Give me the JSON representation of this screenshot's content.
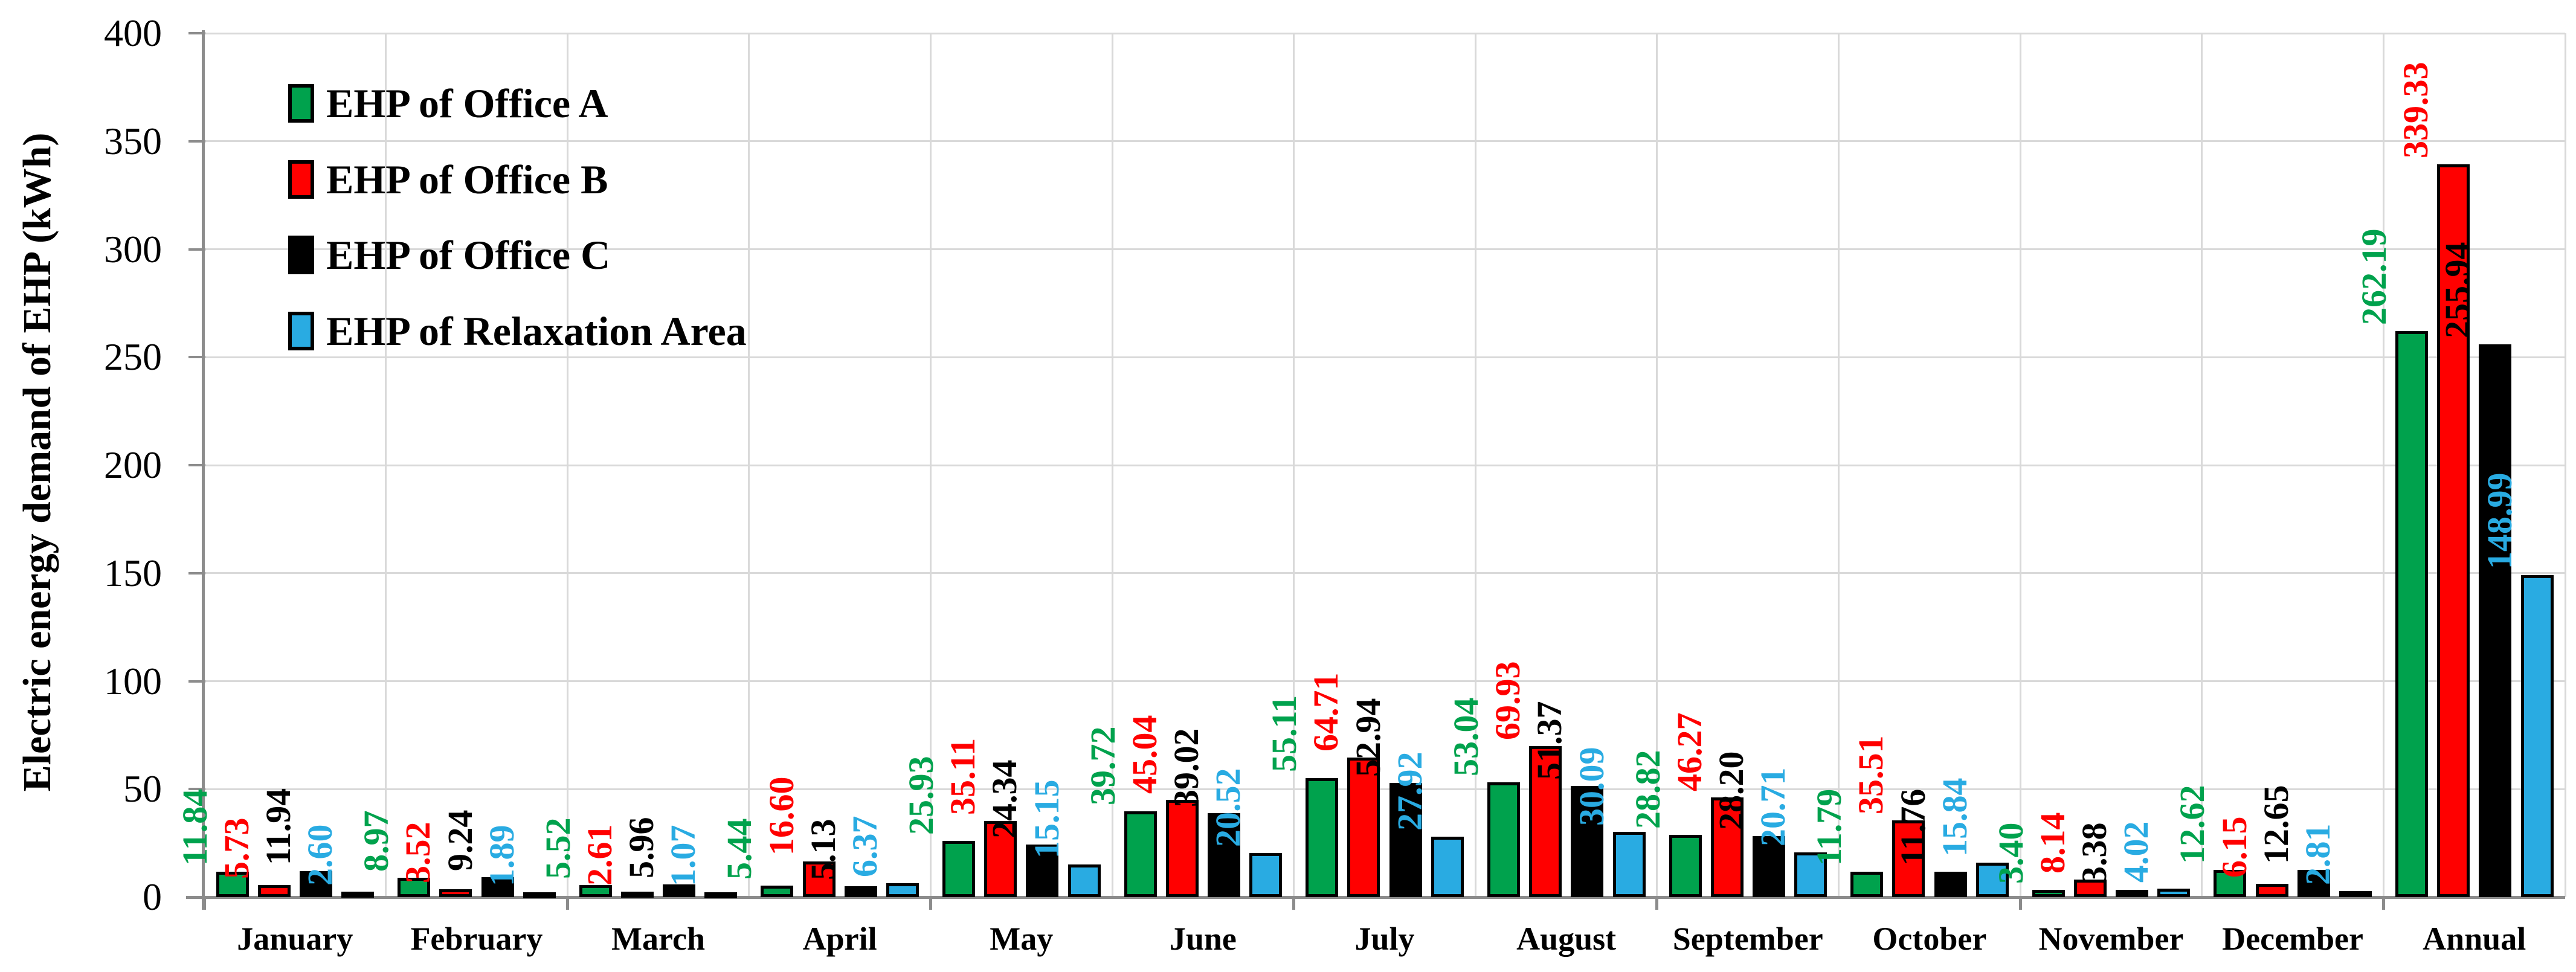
{
  "chart_data": {
    "type": "bar",
    "title": "",
    "xlabel": "",
    "ylabel": "Electric energy demand of EHP (kWh)",
    "ylim": [
      0,
      400
    ],
    "ytick_step": 50,
    "yticks": [
      0,
      50,
      100,
      150,
      200,
      250,
      300,
      350,
      400
    ],
    "grid": {
      "horizontal": true,
      "vertical_category_separators": true
    },
    "legend_position": "upper-left-inside",
    "value_labels": {
      "rotation": 90,
      "decimals": 2
    },
    "categories": [
      "January",
      "February",
      "March",
      "April",
      "May",
      "June",
      "July",
      "August",
      "September",
      "October",
      "November",
      "December",
      "Annual"
    ],
    "series": [
      {
        "name": "EHP of Office A",
        "color": "#00A24D",
        "values": [
          11.84,
          8.97,
          5.52,
          5.44,
          25.93,
          39.72,
          55.11,
          53.04,
          28.82,
          11.79,
          3.4,
          12.62,
          262.19
        ]
      },
      {
        "name": "EHP of Office B",
        "color": "#FF0000",
        "values": [
          5.73,
          3.52,
          2.61,
          16.6,
          35.11,
          45.04,
          64.71,
          69.93,
          46.27,
          35.51,
          8.14,
          6.15,
          339.33
        ]
      },
      {
        "name": "EHP of Office C",
        "color": "#000000",
        "values": [
          11.94,
          9.24,
          5.96,
          5.13,
          24.34,
          39.02,
          52.94,
          51.37,
          28.2,
          11.76,
          3.38,
          12.65,
          255.94
        ]
      },
      {
        "name": "EHP of Relaxation Area",
        "color": "#29ABE2",
        "values": [
          2.6,
          1.89,
          1.07,
          6.37,
          15.15,
          20.52,
          27.92,
          30.09,
          20.71,
          15.84,
          4.02,
          2.81,
          148.99
        ]
      }
    ],
    "colors": {
      "gridline": "#D9D9D9",
      "axis": "#8C8C8C",
      "background": "#FFFFFF"
    }
  }
}
